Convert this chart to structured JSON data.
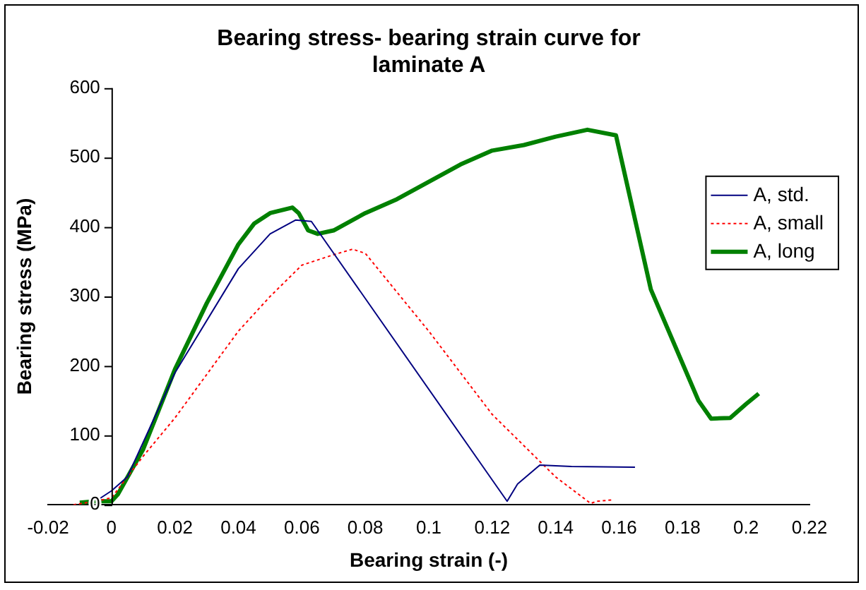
{
  "chart_data": {
    "type": "line",
    "title": "Bearing stress- bearing strain curve for laminate A",
    "xlabel": "Bearing strain (-)",
    "ylabel": "Bearing stress (MPa)",
    "xlim": [
      -0.02,
      0.22
    ],
    "xticks": [
      -0.02,
      0,
      0.02,
      0.04,
      0.06,
      0.08,
      0.1,
      0.12,
      0.14,
      0.16,
      0.18,
      0.2,
      0.22
    ],
    "ylim": [
      0,
      600
    ],
    "yticks": [
      0,
      100,
      200,
      300,
      400,
      500,
      600
    ],
    "grid": false,
    "legend": "top right",
    "marker": "none",
    "series": [
      {
        "name": "A, std.",
        "color": "#000080",
        "line_style": "solid",
        "x": [
          -0.005,
          0,
          0.005,
          0.02,
          0.04,
          0.05,
          0.058,
          0.063,
          0.1247,
          0.128,
          0.135,
          0.145,
          0.165
        ],
        "values": [
          5,
          20,
          40,
          190,
          340,
          390,
          410,
          408,
          5,
          30,
          57,
          55,
          54
        ]
      },
      {
        "name": "A, small",
        "color": "#ff0000",
        "line_style": "dotted",
        "x": [
          -0.012,
          -0.005,
          0,
          0.01,
          0.02,
          0.04,
          0.05,
          0.06,
          0.07,
          0.076,
          0.08,
          0.1,
          0.12,
          0.14,
          0.151,
          0.153,
          0.158
        ],
        "values": [
          0,
          5,
          10,
          70,
          125,
          250,
          300,
          345,
          360,
          368,
          362,
          250,
          130,
          40,
          2,
          5,
          7
        ]
      },
      {
        "name": "A, long",
        "color": "#008000",
        "line_style": "solid",
        "x": [
          -0.01,
          -0.005,
          0,
          0.002,
          0.01,
          0.02,
          0.03,
          0.04,
          0.045,
          0.05,
          0.057,
          0.059,
          0.062,
          0.065,
          0.07,
          0.08,
          0.09,
          0.1,
          0.11,
          0.12,
          0.13,
          0.14,
          0.15,
          0.159,
          0.17,
          0.185,
          0.189,
          0.195,
          0.2,
          0.204
        ],
        "values": [
          3,
          5,
          5,
          15,
          80,
          195,
          290,
          375,
          405,
          420,
          428,
          420,
          395,
          390,
          395,
          420,
          440,
          465,
          490,
          510,
          518,
          530,
          540,
          532,
          310,
          150,
          124,
          125,
          145,
          160
        ]
      }
    ]
  }
}
